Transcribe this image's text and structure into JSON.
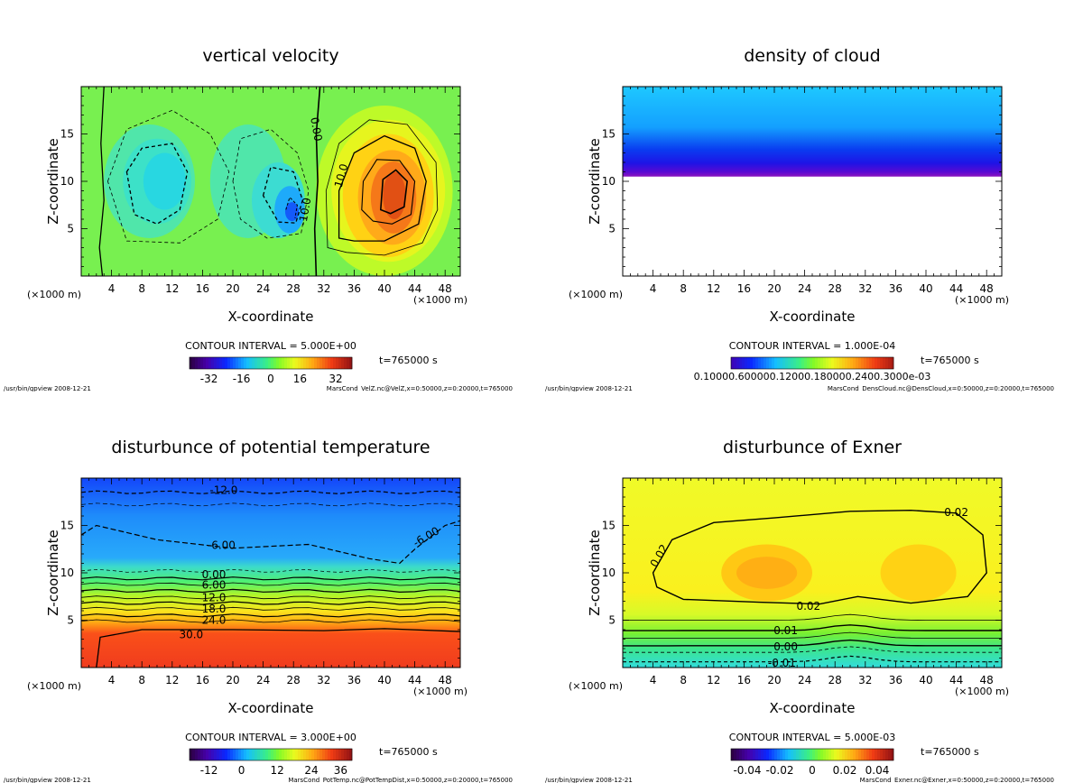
{
  "chart_data": [
    {
      "type": "heatmap",
      "title": "vertical velocity",
      "xlabel": "X-coordinate",
      "ylabel": "Z-coordinate",
      "x_unit_left": "(×1000 m)",
      "x_unit_right": "(×1000 m)",
      "xlim": [
        0,
        50
      ],
      "ylim": [
        0,
        20
      ],
      "xticks": [
        4,
        8,
        12,
        16,
        20,
        24,
        28,
        32,
        36,
        40,
        44,
        48
      ],
      "yticks": [
        5,
        10,
        15
      ],
      "contour_interval": "CONTOUR INTERVAL = 5.000E+00",
      "time": "t=765000 s",
      "colorbar_ticks": [
        "-32",
        "-16",
        "0",
        "16",
        "32"
      ],
      "contour_labels": [
        {
          "text": "0.00",
          "x": 31,
          "z": 15.5,
          "rot": 80
        },
        {
          "text": "10.0",
          "x": 34.3,
          "z": 10.6,
          "rot": -75
        },
        {
          "text": "-10.0",
          "x": 29.5,
          "z": 6.8,
          "rot": -80
        }
      ],
      "footer_left": "/usr/bin/gpview  2008-12-21",
      "footer_right": "MarsCond_VelZ.nc@VelZ,x=0:50000,z=0:20000,t=765000"
    },
    {
      "type": "heatmap",
      "title": "density of cloud",
      "xlabel": "X-coordinate",
      "ylabel": "Z-coordinate",
      "x_unit_left": "(×1000 m)",
      "x_unit_right": "(×1000 m)",
      "xlim": [
        0,
        50
      ],
      "ylim": [
        0,
        20
      ],
      "xticks": [
        4,
        8,
        12,
        16,
        20,
        24,
        28,
        32,
        36,
        40,
        44,
        48
      ],
      "yticks": [
        5,
        10,
        15
      ],
      "contour_interval": "CONTOUR INTERVAL = 1.000E-04",
      "time": "t=765000 s",
      "colorbar_ticks": [
        "0.10000E-03",
        "0.60000E-03",
        "0.12000E-02",
        "0.18000E-02",
        "0.24000E-02",
        "0.30000E-02"
      ],
      "colorbar_tick_text": "0.10000.600000.12000.180000.2400.3000e-03",
      "cloud_base_z": 10.5,
      "footer_left": "/usr/bin/gpview  2008-12-21",
      "footer_right": "MarsCond_DensCloud.nc@DensCloud,x=0:50000,z=0:20000,t=765000"
    },
    {
      "type": "heatmap",
      "title": "disturbunce of potential temperature",
      "xlabel": "X-coordinate",
      "ylabel": "Z-coordinate",
      "x_unit_left": "(×1000 m)",
      "x_unit_right": "(×1000 m)",
      "xlim": [
        0,
        50
      ],
      "ylim": [
        0,
        20
      ],
      "xticks": [
        4,
        8,
        12,
        16,
        20,
        24,
        28,
        32,
        36,
        40,
        44,
        48
      ],
      "yticks": [
        5,
        10,
        15
      ],
      "contour_interval": "CONTOUR INTERVAL = 3.000E+00",
      "time": "t=765000 s",
      "colorbar_ticks": [
        "-12",
        "0",
        "12",
        "24",
        "36"
      ],
      "contour_labels": [
        {
          "text": "-12.0",
          "x": 18.8,
          "z": 18.7,
          "rot": 0
        },
        {
          "text": "-6.00",
          "x": 18.5,
          "z": 12.9,
          "rot": 0
        },
        {
          "text": "-6.00",
          "x": 45.5,
          "z": 13.8,
          "rot": -30
        },
        {
          "text": "0.00",
          "x": 17.5,
          "z": 9.8,
          "rot": 0
        },
        {
          "text": "6.00",
          "x": 17.5,
          "z": 8.7,
          "rot": 0
        },
        {
          "text": "12.0",
          "x": 17.5,
          "z": 7.4,
          "rot": 0
        },
        {
          "text": "18.0",
          "x": 17.5,
          "z": 6.2,
          "rot": 0
        },
        {
          "text": "24.0",
          "x": 17.5,
          "z": 5.0,
          "rot": 0
        },
        {
          "text": "30.0",
          "x": 14.5,
          "z": 3.5,
          "rot": 0
        }
      ],
      "footer_left": "/usr/bin/gpview  2008-12-21",
      "footer_right": "MarsCond_PotTemp.nc@PotTempDist,x=0:50000,z=0:20000,t=765000"
    },
    {
      "type": "heatmap",
      "title": "disturbunce of Exner",
      "xlabel": "X-coordinate",
      "ylabel": "Z-coordinate",
      "x_unit_left": "(×1000 m)",
      "x_unit_right": "(×1000 m)",
      "xlim": [
        0,
        50
      ],
      "ylim": [
        0,
        20
      ],
      "xticks": [
        4,
        8,
        12,
        16,
        20,
        24,
        28,
        32,
        36,
        40,
        44,
        48
      ],
      "yticks": [
        5,
        10,
        15
      ],
      "contour_interval": "CONTOUR INTERVAL = 5.000E-03",
      "time": "t=765000 s",
      "colorbar_ticks": [
        "-0.04",
        "-0.02",
        "0",
        "0.02",
        "0.04"
      ],
      "contour_labels": [
        {
          "text": "0.02",
          "x": 44,
          "z": 16.4,
          "rot": 0
        },
        {
          "text": "0.02",
          "x": 4.8,
          "z": 11.8,
          "rot": -60
        },
        {
          "text": "0.02",
          "x": 24.5,
          "z": 6.5,
          "rot": 0
        },
        {
          "text": "0.01",
          "x": 21.5,
          "z": 3.9,
          "rot": 0
        },
        {
          "text": "0.00",
          "x": 21.5,
          "z": 2.2,
          "rot": 0
        },
        {
          "text": "-0.01",
          "x": 21,
          "z": 0.5,
          "rot": 0
        }
      ],
      "footer_left": "/usr/bin/gpview  2008-12-21",
      "footer_right": "MarsCond_Exner.nc@Exner,x=0:50000,z=0:20000,t=765000"
    }
  ]
}
